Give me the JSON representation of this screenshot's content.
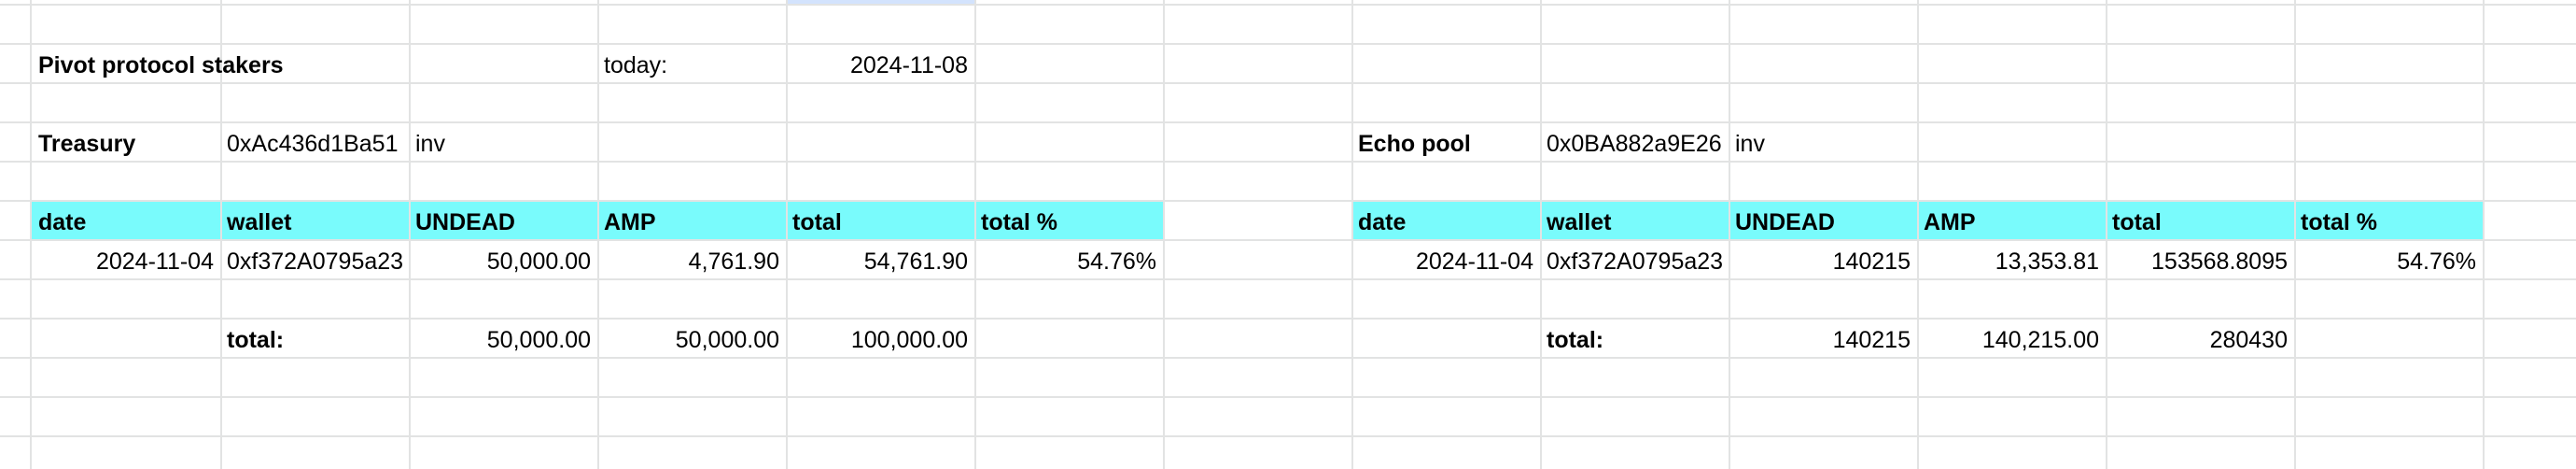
{
  "left": {
    "title": "Pivot protocol stakers",
    "today_label": "today:",
    "today_value": "2024-11-08",
    "name_label": "Treasury",
    "address": "0xAc436d1Ba51",
    "address_suffix": "inv",
    "headers": [
      "date",
      "wallet",
      "UNDEAD",
      "AMP",
      "total",
      "total %"
    ],
    "row": [
      "2024-11-04",
      "0xf372A0795a23",
      "50,000.00",
      "4,761.90",
      "54,761.90",
      "54.76%"
    ],
    "total_label": "total:",
    "totals": [
      "50,000.00",
      "50,000.00",
      "100,000.00"
    ]
  },
  "right": {
    "name_label": "Echo pool",
    "address": "0x0BA882a9E26",
    "address_suffix": "inv",
    "headers": [
      "date",
      "wallet",
      "UNDEAD",
      "AMP",
      "total",
      "total %"
    ],
    "row": [
      "2024-11-04",
      "0xf372A0795a23",
      "140215",
      "13,353.81",
      "153568.8095",
      "54.76%"
    ],
    "total_label": "total:",
    "totals": [
      "140215",
      "140,215.00",
      "280430"
    ]
  },
  "colors": {
    "header_fill": "#79fbfc",
    "gridline": "#e2e3e3",
    "selected_column": "#d3e3fd"
  }
}
